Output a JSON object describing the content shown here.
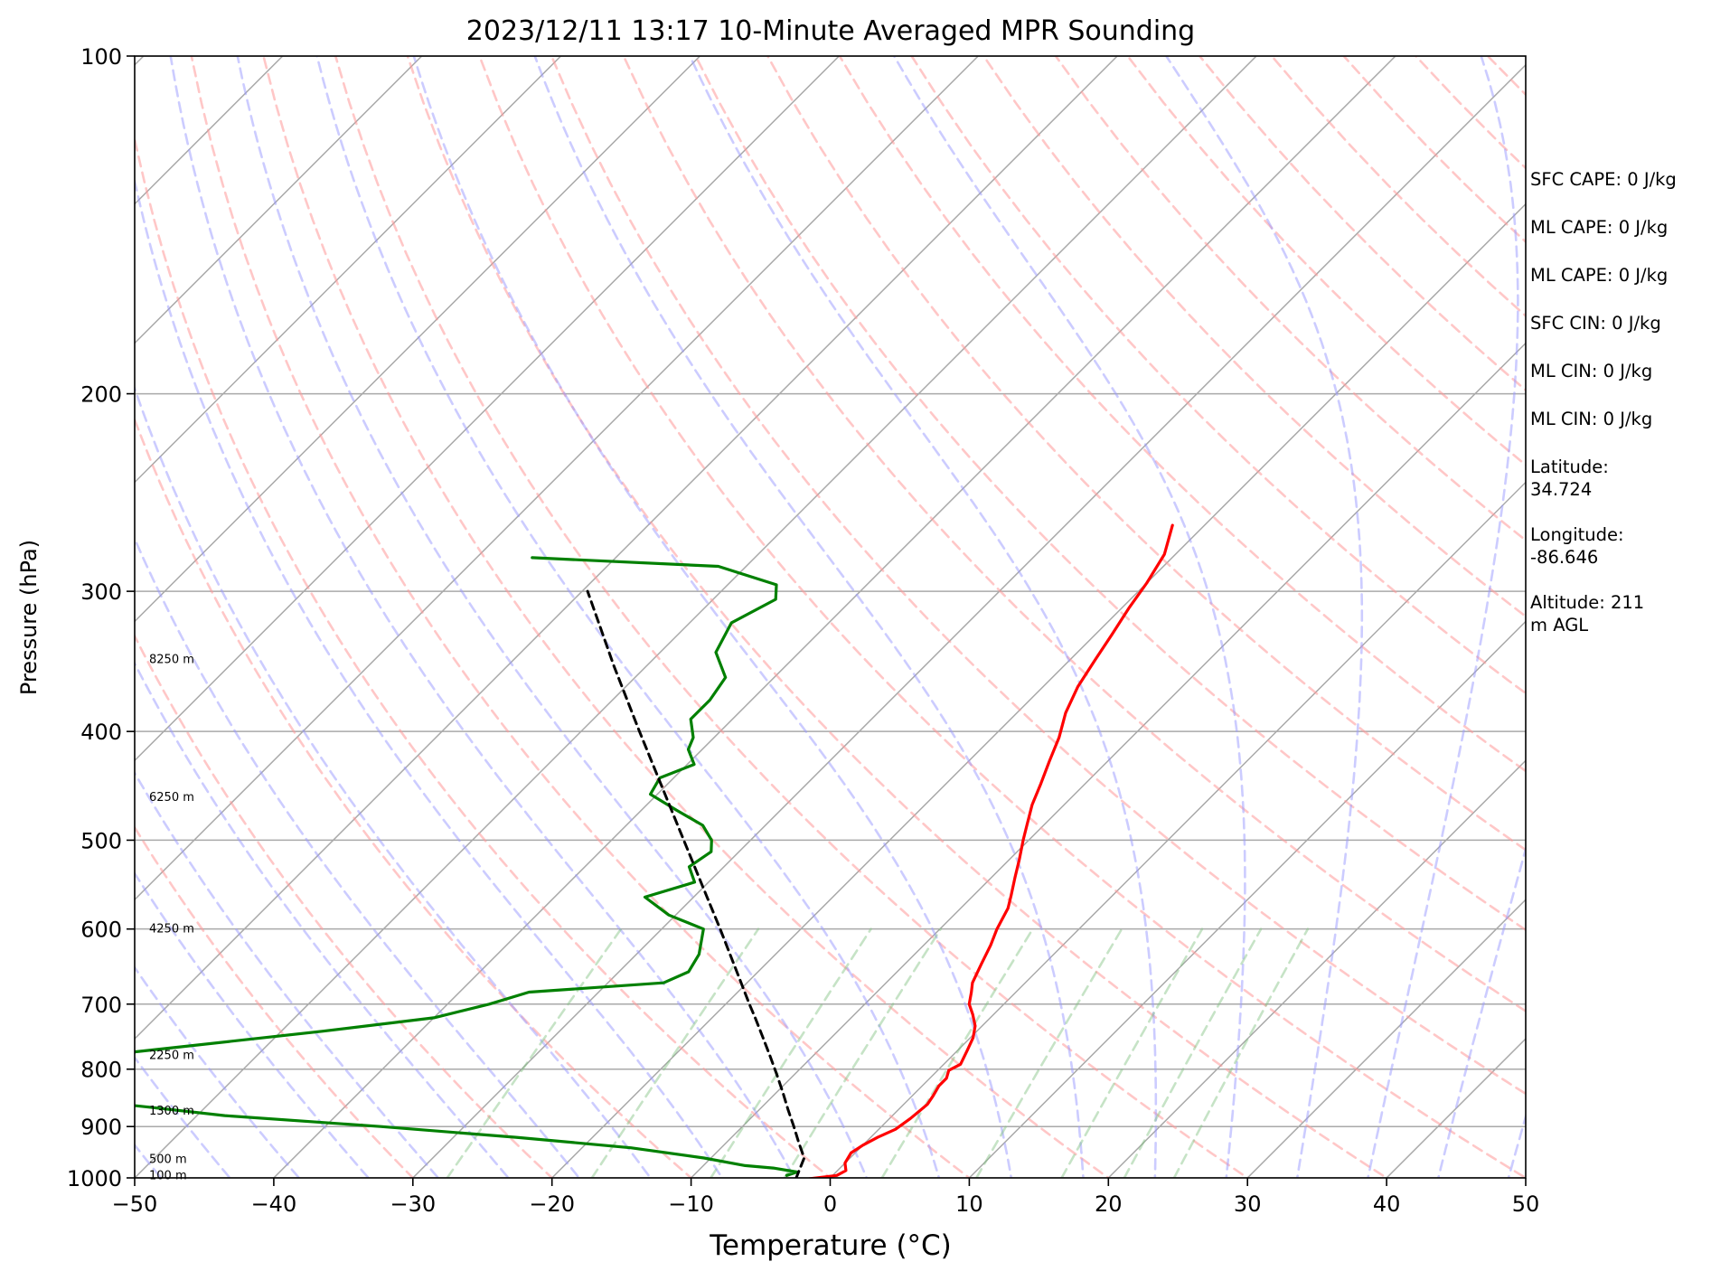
{
  "chart_data": {
    "type": "line",
    "title": "2023/12/11 13:17 10-Minute Averaged MPR Sounding",
    "xlabel": "Temperature (°C)",
    "ylabel": "Pressure (hPa)",
    "xlim": [
      -50,
      50
    ],
    "ylim": [
      1000,
      100
    ],
    "y_scale": "log",
    "x_ticks": [
      "−50",
      "−40",
      "−30",
      "−20",
      "−10",
      "0",
      "10",
      "20",
      "30",
      "40",
      "50"
    ],
    "y_ticks": [
      "100",
      "200",
      "300",
      "400",
      "500",
      "600",
      "700",
      "800",
      "900",
      "1000"
    ],
    "grid": true,
    "colors": {
      "temperature": "#ff0000",
      "dewpoint": "#008000",
      "parcel": "#000000",
      "isotherm": "#a9a9a9",
      "dry_adiabat": "#ff9999",
      "moist_adiabat": "#9999ff",
      "mixing_ratio": "#80c080"
    },
    "series": [
      {
        "key": "temperature",
        "points": [
          [
            1002,
            -1.5
          ],
          [
            995,
            0.3
          ],
          [
            985,
            0.6
          ],
          [
            970,
            0
          ],
          [
            950,
            -0.3
          ],
          [
            935,
            0
          ],
          [
            920,
            0.5
          ],
          [
            905,
            1.2
          ],
          [
            885,
            1.5
          ],
          [
            860,
            1.7
          ],
          [
            845,
            1.5
          ],
          [
            828,
            1.2
          ],
          [
            815,
            1.2
          ],
          [
            802,
            0.8
          ],
          [
            792,
            1.2
          ],
          [
            770,
            0.7
          ],
          [
            750,
            0.2
          ],
          [
            732,
            -0.5
          ],
          [
            715,
            -1.5
          ],
          [
            700,
            -2.5
          ],
          [
            683,
            -3.2
          ],
          [
            670,
            -3.8
          ],
          [
            645,
            -4.5
          ],
          [
            620,
            -5.2
          ],
          [
            600,
            -5.9
          ],
          [
            575,
            -6.6
          ],
          [
            560,
            -7.3
          ],
          [
            540,
            -8.3
          ],
          [
            520,
            -9.3
          ],
          [
            500,
            -10.4
          ],
          [
            485,
            -11.2
          ],
          [
            465,
            -12.3
          ],
          [
            445,
            -13.2
          ],
          [
            425,
            -14.2
          ],
          [
            405,
            -15.2
          ],
          [
            385,
            -16.5
          ],
          [
            365,
            -17.5
          ],
          [
            345,
            -18.2
          ],
          [
            328,
            -18.8
          ],
          [
            310,
            -19.5
          ],
          [
            295,
            -20
          ],
          [
            278,
            -20.8
          ],
          [
            262,
            -22.3
          ]
        ]
      },
      {
        "key": "dewpoint",
        "points": [
          [
            995,
            -3.3
          ],
          [
            988,
            -2.8
          ],
          [
            980,
            -4.8
          ],
          [
            975,
            -7
          ],
          [
            960,
            -10.5
          ],
          [
            940,
            -16.5
          ],
          [
            920,
            -25.5
          ],
          [
            900,
            -36
          ],
          [
            880,
            -48
          ],
          [
            865,
            -54
          ],
          [
            850,
            -60.5
          ],
          [
            838,
            -60
          ],
          [
            820,
            -58.5
          ],
          [
            805,
            -60
          ],
          [
            795,
            -60
          ],
          [
            772,
            -59
          ],
          [
            740,
            -47
          ],
          [
            720,
            -40
          ],
          [
            700,
            -37
          ],
          [
            683,
            -35
          ],
          [
            670,
            -26
          ],
          [
            655,
            -25
          ],
          [
            632,
            -25.5
          ],
          [
            600,
            -27
          ],
          [
            583,
            -30.5
          ],
          [
            562,
            -33.5
          ],
          [
            545,
            -31
          ],
          [
            528,
            -32.5
          ],
          [
            512,
            -32
          ],
          [
            500,
            -32.8
          ],
          [
            485,
            -34.5
          ],
          [
            470,
            -37.5
          ],
          [
            455,
            -40.5
          ],
          [
            440,
            -41
          ],
          [
            428,
            -39.5
          ],
          [
            415,
            -41
          ],
          [
            405,
            -41.5
          ],
          [
            390,
            -43
          ],
          [
            375,
            -43
          ],
          [
            358,
            -43.5
          ],
          [
            340,
            -46
          ],
          [
            320,
            -47
          ],
          [
            305,
            -45.5
          ],
          [
            296,
            -46.5
          ],
          [
            285,
            -52
          ],
          [
            280,
            -66
          ]
        ]
      },
      {
        "key": "parcel",
        "points": [
          [
            1002,
            -2.4
          ],
          [
            960,
            -3.3
          ],
          [
            930,
            -4.8
          ],
          [
            900,
            -6.3
          ],
          [
            870,
            -7.9
          ],
          [
            840,
            -9.5
          ],
          [
            810,
            -11.2
          ],
          [
            780,
            -13
          ],
          [
            750,
            -14.9
          ],
          [
            720,
            -16.9
          ],
          [
            700,
            -18.3
          ],
          [
            650,
            -21.9
          ],
          [
            600,
            -25.8
          ],
          [
            550,
            -30.1
          ],
          [
            500,
            -34.8
          ],
          [
            450,
            -40
          ],
          [
            400,
            -45.8
          ],
          [
            350,
            -52.3
          ],
          [
            300,
            -59.6
          ]
        ]
      }
    ],
    "height_labels": [
      {
        "p": 345,
        "text": "8250 m"
      },
      {
        "p": 458,
        "text": "6250 m"
      },
      {
        "p": 600,
        "text": "4250 m"
      },
      {
        "p": 778,
        "text": "2250 m"
      },
      {
        "p": 872,
        "text": "1300 m"
      },
      {
        "p": 963,
        "text": "500 m"
      },
      {
        "p": 995,
        "text": "100 m"
      }
    ]
  },
  "info": [
    "SFC CAPE: 0 J/kg",
    "ML CAPE: 0 J/kg",
    "ML CAPE: 0 J/kg",
    "SFC CIN: 0 J/kg",
    "ML CIN: 0 J/kg",
    "ML CIN: 0 J/kg",
    "Latitude: 34.724",
    "Longitude: -86.646",
    "Altitude: 211 m AGL"
  ]
}
